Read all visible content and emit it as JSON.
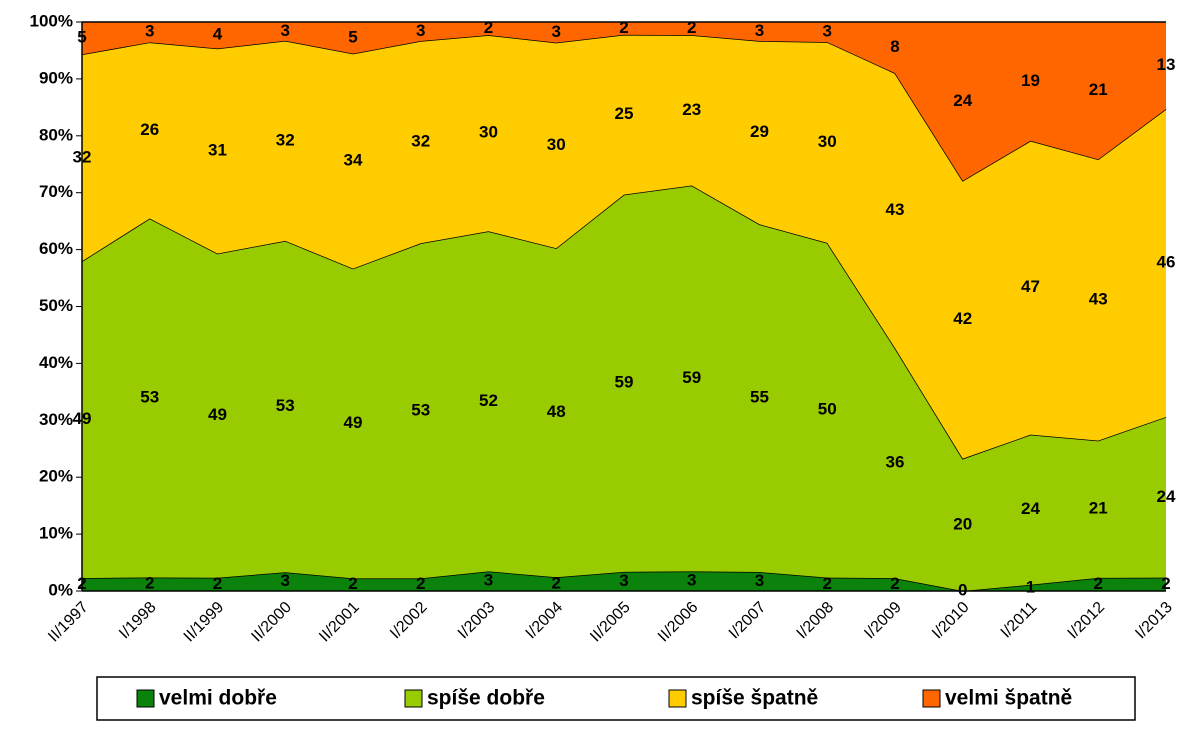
{
  "chart_data": {
    "type": "area",
    "stacking": "percent",
    "categories": [
      "II/1997",
      "I/1998",
      "II/1999",
      "II/2000",
      "II/2001",
      "I/2002",
      "I/2003",
      "I/2004",
      "II/2005",
      "II/2006",
      "I/2007",
      "I/2008",
      "I/2009",
      "I/2010",
      "I/2011",
      "I/2012",
      "I/2013"
    ],
    "series": [
      {
        "name": "velmi dobře",
        "color": "#0b820b",
        "values": [
          2,
          2,
          2,
          3,
          2,
          2,
          3,
          2,
          3,
          3,
          3,
          2,
          2,
          0,
          1,
          2,
          2
        ]
      },
      {
        "name": "spíše dobře",
        "color": "#99cc00",
        "values": [
          49,
          53,
          49,
          53,
          49,
          53,
          52,
          48,
          59,
          59,
          55,
          50,
          36,
          20,
          24,
          21,
          24
        ]
      },
      {
        "name": "spíše špatně",
        "color": "#ffcc00",
        "values": [
          32,
          26,
          31,
          32,
          34,
          32,
          30,
          30,
          25,
          23,
          29,
          30,
          43,
          42,
          47,
          43,
          46
        ]
      },
      {
        "name": "velmi špatně",
        "color": "#ff6600",
        "values": [
          5,
          3,
          4,
          3,
          5,
          3,
          2,
          3,
          2,
          2,
          3,
          3,
          8,
          24,
          19,
          21,
          13
        ]
      }
    ],
    "ylim": [
      0,
      100
    ],
    "yticks": [
      {
        "value": 0,
        "label": "0%"
      },
      {
        "value": 10,
        "label": "10%"
      },
      {
        "value": 20,
        "label": "20%"
      },
      {
        "value": 30,
        "label": "30%"
      },
      {
        "value": 40,
        "label": "40%"
      },
      {
        "value": 50,
        "label": "50%"
      },
      {
        "value": 60,
        "label": "60%"
      },
      {
        "value": 70,
        "label": "70%"
      },
      {
        "value": 80,
        "label": "80%"
      },
      {
        "value": 90,
        "label": "90%"
      },
      {
        "value": 100,
        "label": "100%"
      }
    ],
    "legend": "bottom"
  }
}
